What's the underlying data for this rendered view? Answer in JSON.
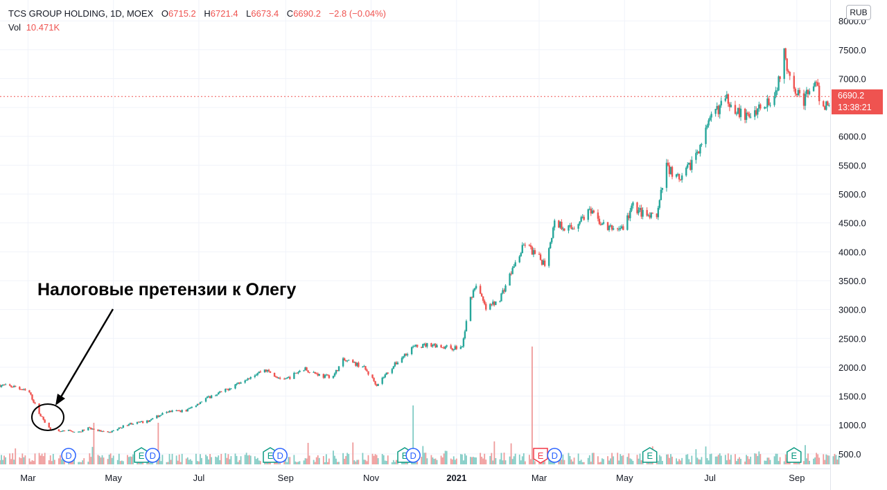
{
  "header": {
    "symbol": "TCS GROUP HOLDING, 1D, MOEX",
    "open_label": "O",
    "open": "6715.2",
    "high_label": "H",
    "high": "6721.4",
    "low_label": "L",
    "low": "6673.4",
    "close_label": "C",
    "close": "6690.2",
    "change": "−2.8 (−0.04%)",
    "vol_label": "Vol",
    "vol": "10.471K"
  },
  "currency": "RUB",
  "annotation": "Налоговые претензии к Олегу",
  "last_price": {
    "value": "6690.2",
    "countdown": "13:38:21"
  },
  "colors": {
    "up": "#26a69a",
    "down": "#ef5350",
    "dividend": "#2962ff",
    "earnings": "#089981",
    "earnings_down": "#f23645"
  },
  "chart_data": {
    "type": "candlestick",
    "y_axis": {
      "min": 150,
      "max": 8050,
      "ticks": [
        500,
        1000,
        1500,
        2000,
        2500,
        3000,
        3500,
        4000,
        4500,
        5000,
        5500,
        6000,
        6500,
        7000,
        7500,
        8000
      ]
    },
    "x_axis": {
      "start": "2020-02-10",
      "end": "2021-10-25",
      "labels": [
        {
          "date": "2020-03-01",
          "text": "Mar",
          "bold": false
        },
        {
          "date": "2020-05-01",
          "text": "May",
          "bold": false
        },
        {
          "date": "2020-07-01",
          "text": "Jul",
          "bold": false
        },
        {
          "date": "2020-09-01",
          "text": "Sep",
          "bold": false
        },
        {
          "date": "2020-11-01",
          "text": "Nov",
          "bold": false
        },
        {
          "date": "2021-01-01",
          "text": "2021",
          "bold": true
        },
        {
          "date": "2021-03-01",
          "text": "Mar",
          "bold": false
        },
        {
          "date": "2021-05-01",
          "text": "May",
          "bold": false
        },
        {
          "date": "2021-07-01",
          "text": "Jul",
          "bold": false
        },
        {
          "date": "2021-09-01",
          "text": "Sep",
          "bold": false
        }
      ]
    },
    "price_path": [
      [
        "2020-02-10",
        1690
      ],
      [
        "2020-02-21",
        1660
      ],
      [
        "2020-03-02",
        1560
      ],
      [
        "2020-03-09",
        1200
      ],
      [
        "2020-03-16",
        950
      ],
      [
        "2020-03-23",
        880
      ],
      [
        "2020-03-30",
        900
      ],
      [
        "2020-04-06",
        870
      ],
      [
        "2020-04-13",
        950
      ],
      [
        "2020-04-27",
        860
      ],
      [
        "2020-05-12",
        1020
      ],
      [
        "2020-05-25",
        1060
      ],
      [
        "2020-06-08",
        1230
      ],
      [
        "2020-06-22",
        1250
      ],
      [
        "2020-07-06",
        1460
      ],
      [
        "2020-07-20",
        1600
      ],
      [
        "2020-08-03",
        1800
      ],
      [
        "2020-08-17",
        1960
      ],
      [
        "2020-08-31",
        1770
      ],
      [
        "2020-09-14",
        1980
      ],
      [
        "2020-09-28",
        1840
      ],
      [
        "2020-10-05",
        1850
      ],
      [
        "2020-10-12",
        2120
      ],
      [
        "2020-10-26",
        2020
      ],
      [
        "2020-11-05",
        1700
      ],
      [
        "2020-11-16",
        2000
      ],
      [
        "2020-11-30",
        2340
      ],
      [
        "2020-12-14",
        2400
      ],
      [
        "2020-12-28",
        2330
      ],
      [
        "2021-01-05",
        2350
      ],
      [
        "2021-01-11",
        3200
      ],
      [
        "2021-01-15",
        3450
      ],
      [
        "2021-01-22",
        3000
      ],
      [
        "2021-02-01",
        3200
      ],
      [
        "2021-02-10",
        3700
      ],
      [
        "2021-02-19",
        4150
      ],
      [
        "2021-02-26",
        3950
      ],
      [
        "2021-03-05",
        3800
      ],
      [
        "2021-03-12",
        4500
      ],
      [
        "2021-03-24",
        4400
      ],
      [
        "2021-04-05",
        4700
      ],
      [
        "2021-04-19",
        4400
      ],
      [
        "2021-04-30",
        4420
      ],
      [
        "2021-05-07",
        4800
      ],
      [
        "2021-05-17",
        4600
      ],
      [
        "2021-05-24",
        4600
      ],
      [
        "2021-05-31",
        5500
      ],
      [
        "2021-06-10",
        5200
      ],
      [
        "2021-06-21",
        5700
      ],
      [
        "2021-07-05",
        6450
      ],
      [
        "2021-07-14",
        6650
      ],
      [
        "2021-07-26",
        6300
      ],
      [
        "2021-08-09",
        6600
      ],
      [
        "2021-08-16",
        6700
      ],
      [
        "2021-08-23",
        7400
      ],
      [
        "2021-08-30",
        6900
      ],
      [
        "2021-09-06",
        6600
      ],
      [
        "2021-09-13",
        6950
      ],
      [
        "2021-09-20",
        6500
      ],
      [
        "2021-09-27",
        6700
      ],
      [
        "2021-10-01",
        6690
      ]
    ],
    "volume_spikes": [
      {
        "date": "2020-04-17",
        "vol": "high"
      },
      {
        "date": "2020-06-02",
        "vol": "high"
      },
      {
        "date": "2020-12-01",
        "vol": "very-high"
      },
      {
        "date": "2021-02-24",
        "vol": "extreme"
      }
    ],
    "events": [
      {
        "date": "2020-03-30",
        "type": "D"
      },
      {
        "date": "2020-05-21",
        "type": "E"
      },
      {
        "date": "2020-05-29",
        "type": "D"
      },
      {
        "date": "2020-08-21",
        "type": "E"
      },
      {
        "date": "2020-08-28",
        "type": "D"
      },
      {
        "date": "2020-11-25",
        "type": "E"
      },
      {
        "date": "2020-12-01",
        "type": "D"
      },
      {
        "date": "2021-03-02",
        "type": "E",
        "down": true
      },
      {
        "date": "2021-03-12",
        "type": "D"
      },
      {
        "date": "2021-05-19",
        "type": "E"
      },
      {
        "date": "2021-08-30",
        "type": "E"
      }
    ]
  }
}
